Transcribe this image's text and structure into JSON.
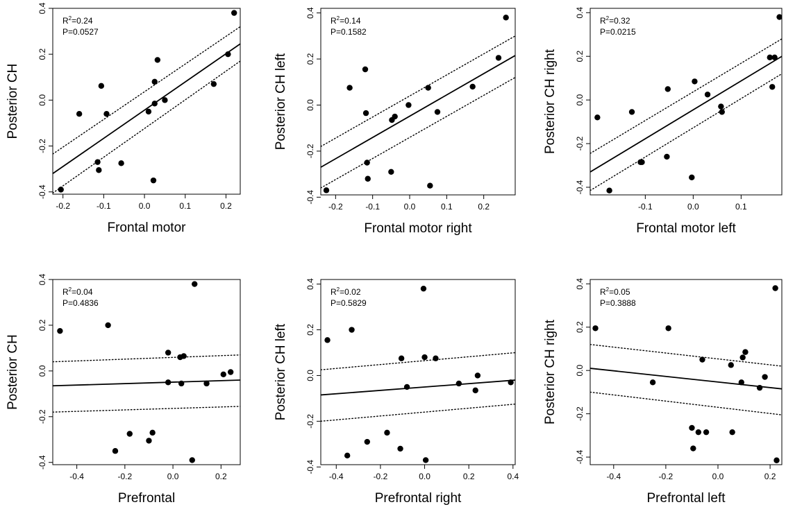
{
  "chart_data": [
    {
      "type": "scatter",
      "xlabel": "Frontal motor",
      "ylabel": "Posterior CH",
      "annotations": {
        "r2_prefix": "R",
        "r2_value": "=0.24",
        "p_text": "P=0.0527"
      },
      "xlim": [
        -0.225,
        0.235
      ],
      "ylim": [
        -0.41,
        0.4
      ],
      "xticks": [
        -0.2,
        -0.1,
        0.0,
        0.1,
        0.2
      ],
      "xtick_labels": [
        "-0.2",
        "-0.1",
        "0.0",
        "0.1",
        "0.2"
      ],
      "yticks": [
        -0.4,
        -0.2,
        0.0,
        0.2,
        0.4
      ],
      "ytick_labels": [
        "-0.4",
        "-0.2",
        "0.0",
        "0.2",
        "0.4"
      ],
      "points": {
        "x": [
          -0.205,
          -0.16,
          -0.115,
          -0.112,
          -0.106,
          -0.093,
          -0.057,
          0.01,
          0.022,
          0.025,
          0.025,
          0.032,
          0.05,
          0.17,
          0.205,
          0.22
        ],
        "y": [
          -0.39,
          -0.06,
          -0.27,
          -0.305,
          0.062,
          -0.06,
          -0.275,
          -0.05,
          -0.35,
          -0.015,
          0.08,
          0.175,
          0.0,
          0.07,
          0.2,
          0.38
        ]
      },
      "fit_line": {
        "x": [
          -0.225,
          0.235
        ],
        "y": [
          -0.32,
          0.245
        ]
      },
      "ci_upper": {
        "x": [
          -0.225,
          0.235
        ],
        "y": [
          -0.235,
          0.32
        ]
      },
      "ci_lower": {
        "x": [
          -0.225,
          0.235
        ],
        "y": [
          -0.405,
          0.17
        ]
      }
    },
    {
      "type": "scatter",
      "xlabel": "Frontal motor right",
      "ylabel": "Posterior CH left",
      "annotations": {
        "r2_prefix": "R",
        "r2_value": "=0.14",
        "p_text": "P=0.1582"
      },
      "xlim": [
        -0.24,
        0.285
      ],
      "ylim": [
        -0.39,
        0.42
      ],
      "xticks": [
        -0.2,
        -0.1,
        0.0,
        0.1,
        0.2
      ],
      "xtick_labels": [
        "-0.2",
        "-0.1",
        "0.0",
        "0.1",
        "0.2"
      ],
      "yticks": [
        -0.4,
        -0.2,
        0.0,
        0.2,
        0.4
      ],
      "ytick_labels": [
        "-0.4",
        "-0.2",
        "0.0",
        "0.2",
        "0.4"
      ],
      "points": {
        "x": [
          -0.225,
          -0.162,
          -0.12,
          -0.118,
          -0.115,
          -0.113,
          -0.05,
          -0.048,
          -0.04,
          -0.003,
          0.05,
          0.055,
          0.075,
          0.17,
          0.24,
          0.26
        ],
        "y": [
          -0.37,
          0.075,
          0.155,
          -0.035,
          -0.25,
          -0.32,
          -0.29,
          -0.065,
          -0.05,
          0.0,
          0.075,
          -0.35,
          -0.03,
          0.08,
          0.205,
          0.38
        ]
      },
      "fit_line": {
        "x": [
          -0.24,
          0.285
        ],
        "y": [
          -0.27,
          0.215
        ]
      },
      "ci_upper": {
        "x": [
          -0.24,
          0.285
        ],
        "y": [
          -0.18,
          0.3
        ]
      },
      "ci_lower": {
        "x": [
          -0.24,
          0.285
        ],
        "y": [
          -0.36,
          0.12
        ]
      }
    },
    {
      "type": "scatter",
      "xlabel": "Frontal motor left",
      "ylabel": "Posterior CH right",
      "annotations": {
        "r2_prefix": "R",
        "r2_value": "=0.32",
        "p_text": "P=0.0215"
      },
      "xlim": [
        -0.215,
        0.185
      ],
      "ylim": [
        -0.435,
        0.42
      ],
      "xticks": [
        -0.1,
        0.0,
        0.1
      ],
      "xtick_labels": [
        "-0.1",
        "0.0",
        "0.1"
      ],
      "yticks": [
        -0.4,
        -0.2,
        0.0,
        0.2,
        0.4
      ],
      "ytick_labels": [
        "-0.4",
        "-0.2",
        "0.0",
        "0.2",
        "0.4"
      ],
      "points": {
        "x": [
          -0.2,
          -0.175,
          -0.128,
          -0.11,
          -0.107,
          -0.055,
          -0.053,
          -0.003,
          0.003,
          0.03,
          0.058,
          0.06,
          0.16,
          0.165,
          0.17,
          0.18
        ],
        "y": [
          -0.08,
          -0.415,
          -0.055,
          -0.285,
          -0.285,
          -0.26,
          0.05,
          -0.355,
          0.085,
          0.025,
          -0.03,
          -0.055,
          0.195,
          0.06,
          0.195,
          0.38
        ]
      },
      "fit_line": {
        "x": [
          -0.215,
          0.185
        ],
        "y": [
          -0.33,
          0.2
        ]
      },
      "ci_upper": {
        "x": [
          -0.215,
          0.185
        ],
        "y": [
          -0.245,
          0.28
        ]
      },
      "ci_lower": {
        "x": [
          -0.215,
          0.185
        ],
        "y": [
          -0.415,
          0.12
        ]
      }
    },
    {
      "type": "scatter",
      "xlabel": "Prefrontal",
      "ylabel": "Posterior CH",
      "annotations": {
        "r2_prefix": "R",
        "r2_value": "=0.04",
        "p_text": "P=0.4836"
      },
      "xlim": [
        -0.5,
        0.28
      ],
      "ylim": [
        -0.41,
        0.4
      ],
      "xticks": [
        -0.4,
        -0.2,
        0.0,
        0.2
      ],
      "xtick_labels": [
        "-0.4",
        "-0.2",
        "0.0",
        "0.2"
      ],
      "yticks": [
        -0.4,
        -0.2,
        0.0,
        0.2,
        0.4
      ],
      "ytick_labels": [
        "-0.4",
        "-0.2",
        "0.0",
        "0.2",
        "0.4"
      ],
      "points": {
        "x": [
          -0.47,
          -0.27,
          -0.24,
          -0.18,
          -0.1,
          -0.085,
          -0.02,
          -0.02,
          0.03,
          0.035,
          0.045,
          0.08,
          0.09,
          0.14,
          0.21,
          0.24
        ],
        "y": [
          0.175,
          0.2,
          -0.35,
          -0.275,
          -0.305,
          -0.27,
          0.08,
          -0.05,
          0.06,
          -0.055,
          0.065,
          -0.39,
          0.38,
          -0.055,
          -0.015,
          -0.005
        ]
      },
      "fit_line": {
        "x": [
          -0.5,
          0.28
        ],
        "y": [
          -0.065,
          -0.04
        ]
      },
      "ci_upper": {
        "x": [
          -0.5,
          0.28
        ],
        "y": [
          0.04,
          0.07
        ]
      },
      "ci_lower": {
        "x": [
          -0.5,
          0.28
        ],
        "y": [
          -0.18,
          -0.155
        ]
      }
    },
    {
      "type": "scatter",
      "xlabel": "Prefrontal right",
      "ylabel": "Posterior CH left",
      "annotations": {
        "r2_prefix": "R",
        "r2_value": "=0.02",
        "p_text": "P=0.5829"
      },
      "xlim": [
        -0.47,
        0.41
      ],
      "ylim": [
        -0.39,
        0.42
      ],
      "xticks": [
        -0.4,
        -0.2,
        0.0,
        0.2,
        0.4
      ],
      "xtick_labels": [
        "-0.4",
        "-0.2",
        "0.0",
        "0.2",
        "0.4"
      ],
      "yticks": [
        -0.4,
        -0.2,
        0.0,
        0.2,
        0.4
      ],
      "ytick_labels": [
        "-0.4",
        "-0.2",
        "0.0",
        "0.2",
        "0.4"
      ],
      "points": {
        "x": [
          -0.44,
          -0.35,
          -0.33,
          -0.26,
          -0.17,
          -0.11,
          -0.105,
          -0.08,
          -0.005,
          0.0,
          0.005,
          0.05,
          0.155,
          0.23,
          0.24,
          0.39
        ],
        "y": [
          0.155,
          -0.35,
          0.2,
          -0.29,
          -0.25,
          -0.32,
          0.075,
          -0.05,
          0.38,
          0.08,
          -0.37,
          0.075,
          -0.035,
          -0.065,
          0.0,
          -0.03
        ]
      },
      "fit_line": {
        "x": [
          -0.47,
          0.41
        ],
        "y": [
          -0.085,
          -0.02
        ]
      },
      "ci_upper": {
        "x": [
          -0.47,
          0.41
        ],
        "y": [
          0.025,
          0.1
        ]
      },
      "ci_lower": {
        "x": [
          -0.47,
          0.41
        ],
        "y": [
          -0.2,
          -0.125
        ]
      }
    },
    {
      "type": "scatter",
      "xlabel": "Prefrontal left",
      "ylabel": "Posterior CH right",
      "annotations": {
        "r2_prefix": "R",
        "r2_value": "=0.05",
        "p_text": "P=0.3888"
      },
      "xlim": [
        -0.49,
        0.245
      ],
      "ylim": [
        -0.435,
        0.42
      ],
      "xticks": [
        -0.4,
        -0.2,
        0.0,
        0.2
      ],
      "xtick_labels": [
        "-0.4",
        "-0.2",
        "0.0",
        "0.2"
      ],
      "yticks": [
        -0.4,
        -0.2,
        0.0,
        0.2,
        0.4
      ],
      "ytick_labels": [
        "-0.4",
        "-0.2",
        "0.0",
        "0.2",
        "0.4"
      ],
      "points": {
        "x": [
          -0.47,
          -0.25,
          -0.19,
          -0.1,
          -0.095,
          -0.075,
          -0.06,
          -0.045,
          0.05,
          0.055,
          0.09,
          0.095,
          0.105,
          0.16,
          0.18,
          0.22,
          0.225
        ],
        "y": [
          0.195,
          -0.055,
          0.195,
          -0.265,
          -0.36,
          -0.285,
          0.05,
          -0.285,
          0.025,
          -0.285,
          -0.055,
          0.06,
          0.085,
          -0.08,
          -0.03,
          0.38,
          -0.415
        ]
      },
      "fit_line": {
        "x": [
          -0.49,
          0.245
        ],
        "y": [
          0.01,
          -0.085
        ]
      },
      "ci_upper": {
        "x": [
          -0.49,
          0.245
        ],
        "y": [
          0.12,
          0.02
        ]
      },
      "ci_lower": {
        "x": [
          -0.49,
          0.245
        ],
        "y": [
          -0.1,
          -0.205
        ]
      }
    }
  ]
}
